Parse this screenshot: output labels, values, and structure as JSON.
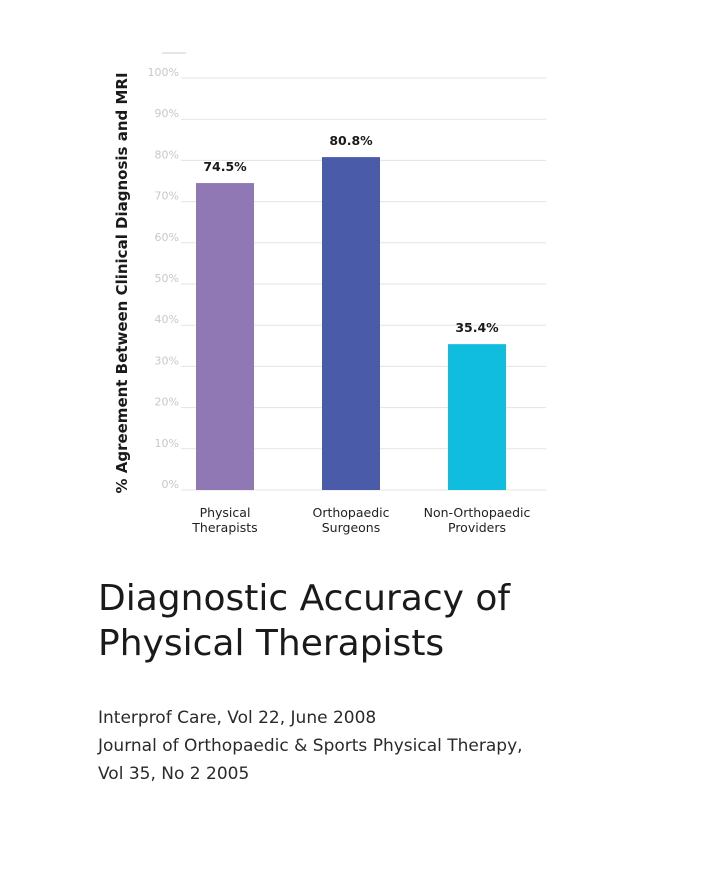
{
  "chart_data": {
    "type": "bar",
    "ylabel": "% Agreement Between Clinical Diagnosis and MRI",
    "ylim": [
      0,
      100
    ],
    "yticks": [
      "0%",
      "10%",
      "20%",
      "30%",
      "40%",
      "50%",
      "60%",
      "70%",
      "80%",
      "90%",
      "100%"
    ],
    "grid": true,
    "categories": [
      [
        "Physical",
        "Therapists"
      ],
      [
        "Orthopaedic",
        "Surgeons"
      ],
      [
        "Non-Orthopaedic",
        "Providers"
      ]
    ],
    "values": [
      74.5,
      80.8,
      35.4
    ],
    "value_labels": [
      "74.5%",
      "80.8%",
      "35.4%"
    ],
    "colors": [
      "#8f78b4",
      "#4a5ba9",
      "#11bddf"
    ]
  },
  "title": {
    "line1": "Diagnostic Accuracy of",
    "line2": "Physical Therapists"
  },
  "sources": {
    "line1": "Interprof Care, Vol 22, June 2008",
    "line2": "Journal of Orthopaedic & Sports Physical Therapy,",
    "line3": "Vol 35, No 2 2005"
  }
}
